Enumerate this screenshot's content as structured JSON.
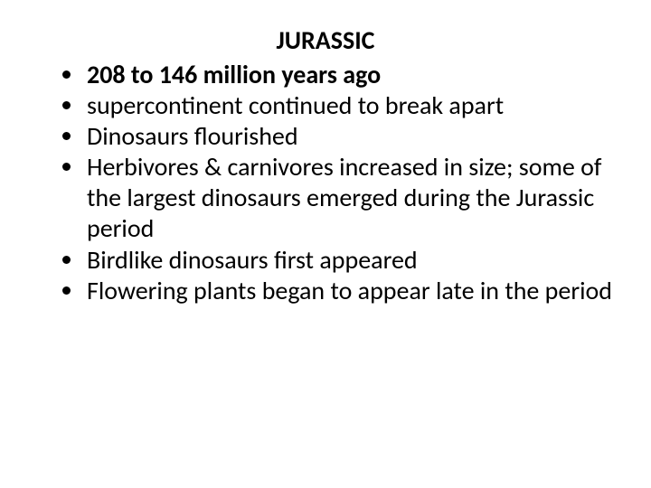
{
  "slide": {
    "title": "JURASSIC",
    "title_fontsize": 28,
    "title_fontweight": 700,
    "title_align": "center",
    "background_color": "#ffffff",
    "text_color": "#000000",
    "bullets": [
      {
        "text": "208 to 146 million years ago",
        "bold": true
      },
      {
        "text": "supercontinent continued to break apart",
        "bold": false
      },
      {
        "text": "Dinosaurs flourished",
        "bold": false
      },
      {
        "text": "Herbivores & carnivores increased in size; some of the largest dinosaurs emerged during the Jurassic period",
        "bold": false
      },
      {
        "text": "Birdlike dinosaurs first appeared",
        "bold": false
      },
      {
        "text": "Flowering plants began to appear late in the period",
        "bold": false
      }
    ],
    "bullet_fontsize": 28,
    "bullet_marker": "disc"
  }
}
